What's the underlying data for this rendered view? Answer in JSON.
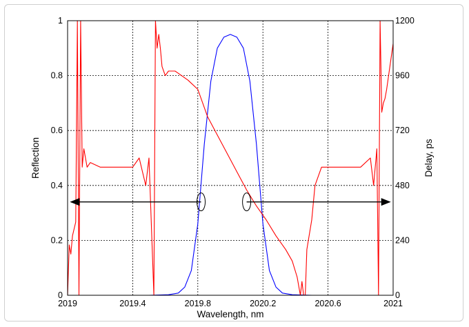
{
  "chart_data": {
    "type": "line",
    "xlabel": "Wavelength, nm",
    "ylabel_left": "Reflection",
    "ylabel_right": "Delay, ps",
    "xlim": [
      2019,
      2021
    ],
    "ylim_left": [
      0,
      1
    ],
    "ylim_right": [
      0,
      1200
    ],
    "xticks": [
      "2019",
      "2019.4",
      "2019.8",
      "2020.2",
      "2020.6",
      "2021"
    ],
    "yticks_left": [
      "0",
      "0.2",
      "0.4",
      "0.6",
      "0.8",
      "1"
    ],
    "yticks_right": [
      "0",
      "240",
      "480",
      "720",
      "960",
      "1200"
    ],
    "grid": true,
    "series": [
      {
        "axis": "left",
        "color": "#0000ff",
        "x": [
          2019.0,
          2019.5,
          2019.62,
          2019.68,
          2019.72,
          2019.76,
          2019.8,
          2019.84,
          2019.88,
          2019.92,
          2019.96,
          2020.0,
          2020.04,
          2020.08,
          2020.12,
          2020.16,
          2020.2,
          2020.24,
          2020.28,
          2020.32,
          2020.38,
          2020.5,
          2021.0
        ],
        "values": [
          0,
          0,
          0.002,
          0.008,
          0.03,
          0.09,
          0.26,
          0.55,
          0.78,
          0.9,
          0.94,
          0.95,
          0.94,
          0.9,
          0.78,
          0.55,
          0.26,
          0.09,
          0.03,
          0.008,
          0.002,
          0,
          0
        ]
      },
      {
        "axis": "right",
        "color": "#ff0000",
        "x": [
          2019.0,
          2019.01,
          2019.02,
          2019.03,
          2019.05,
          2019.06,
          2019.07,
          2019.08,
          2019.09,
          2019.1,
          2019.12,
          2019.14,
          2019.2,
          2019.3,
          2019.4,
          2019.44,
          2019.48,
          2019.5,
          2019.53,
          2019.54,
          2019.55,
          2019.56,
          2019.57,
          2019.58,
          2019.6,
          2019.62,
          2019.66,
          2019.7,
          2019.74,
          2019.8,
          2019.86,
          2019.92,
          2019.98,
          2020.04,
          2020.1,
          2020.16,
          2020.22,
          2020.28,
          2020.34,
          2020.38,
          2020.41,
          2020.43,
          2020.44,
          2020.45,
          2020.46,
          2020.47,
          2020.5,
          2020.52,
          2020.56,
          2020.6,
          2020.7,
          2020.8,
          2020.86,
          2020.88,
          2020.9,
          2020.91,
          2020.92,
          2020.93,
          2020.94,
          2020.95,
          2020.96,
          2020.98,
          2021.0
        ],
        "values": [
          0,
          220,
          180,
          260,
          320,
          1200,
          0,
          1200,
          560,
          640,
          560,
          580,
          560,
          560,
          560,
          600,
          480,
          600,
          0,
          1200,
          1080,
          1140,
          1080,
          1000,
          960,
          980,
          980,
          960,
          940,
          900,
          780,
          700,
          620,
          540,
          460,
          390,
          330,
          260,
          200,
          150,
          80,
          0,
          60,
          0,
          0,
          200,
          330,
          480,
          560,
          560,
          560,
          560,
          600,
          480,
          640,
          0,
          1200,
          800,
          840,
          860,
          900,
          1000,
          1100
        ]
      }
    ],
    "annotations": [
      {
        "type": "arrow",
        "description": "double-headed arrow pointing left from circled blue curve to left axis",
        "y_left": 0.34,
        "x_from": 2019.82,
        "x_to": 2019.02
      },
      {
        "type": "arrow",
        "description": "double-headed arrow pointing right from circled red curve to right axis",
        "y_left": 0.34,
        "x_from": 2020.1,
        "x_to": 2020.98
      }
    ]
  }
}
